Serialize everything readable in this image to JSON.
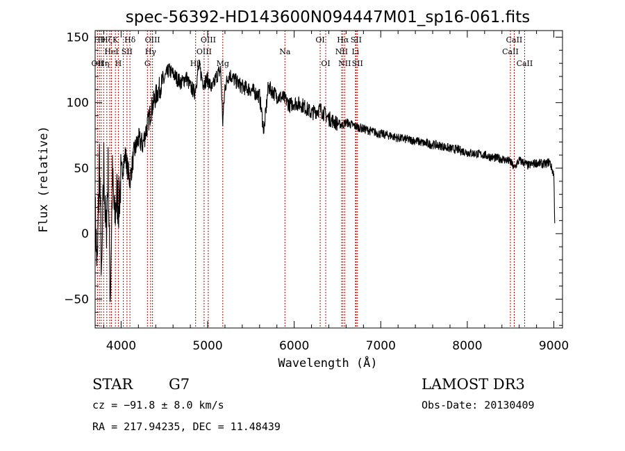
{
  "chart_data": {
    "type": "line",
    "title": "spec-56392-HD143600N094447M01_sp16-061.fits",
    "xlabel": "Wavelength (Å)",
    "ylabel": "Flux (relative)",
    "xlim": [
      3700,
      9100
    ],
    "ylim": [
      -72,
      155
    ],
    "xticks": [
      {
        "value": 4000,
        "label": "4000"
      },
      {
        "value": 5000,
        "label": "5000"
      },
      {
        "value": 6000,
        "label": "6000"
      },
      {
        "value": 7000,
        "label": "7000"
      },
      {
        "value": 8000,
        "label": "8000"
      },
      {
        "value": 9000,
        "label": "9000"
      }
    ],
    "yticks": [
      {
        "value": -50,
        "label": "−50"
      },
      {
        "value": 0,
        "label": "0"
      },
      {
        "value": 50,
        "label": "50"
      },
      {
        "value": 100,
        "label": "100"
      },
      {
        "value": 150,
        "label": "150"
      }
    ],
    "series": [
      {
        "name": "flux",
        "x": [
          3700,
          3725,
          3750,
          3775,
          3800,
          3825,
          3850,
          3875,
          3900,
          3925,
          3950,
          3975,
          4000,
          4050,
          4100,
          4150,
          4200,
          4250,
          4300,
          4350,
          4400,
          4450,
          4500,
          4550,
          4600,
          4650,
          4700,
          4750,
          4800,
          4850,
          4900,
          4950,
          5000,
          5050,
          5100,
          5150,
          5175,
          5200,
          5250,
          5300,
          5400,
          5500,
          5600,
          5650,
          5700,
          5800,
          5890,
          5950,
          6000,
          6100,
          6200,
          6300,
          6400,
          6500,
          6560,
          6600,
          6700,
          6800,
          6900,
          7000,
          7100,
          7200,
          7300,
          7400,
          7500,
          7600,
          7700,
          7800,
          7900,
          8000,
          8100,
          8200,
          8300,
          8400,
          8500,
          8540,
          8600,
          8660,
          8700,
          8800,
          8900,
          8950,
          9000,
          9010
        ],
        "y": [
          15,
          -28,
          60,
          -40,
          55,
          -5,
          48,
          -48,
          42,
          10,
          30,
          22,
          45,
          60,
          40,
          62,
          72,
          68,
          82,
          95,
          105,
          112,
          118,
          125,
          122,
          118,
          115,
          120,
          112,
          108,
          128,
          115,
          118,
          110,
          120,
          125,
          85,
          112,
          122,
          118,
          112,
          110,
          105,
          78,
          112,
          105,
          103,
          98,
          100,
          98,
          92,
          95,
          88,
          84,
          83,
          85,
          82,
          80,
          78,
          76,
          75,
          73,
          72,
          71,
          69,
          68,
          67,
          65,
          64,
          62,
          61,
          60,
          58,
          57,
          55,
          50,
          56,
          54,
          52,
          54,
          53,
          55,
          45,
          8
        ]
      }
    ],
    "lines": [
      {
        "x": 3727,
        "label": "OII",
        "row": 3
      },
      {
        "x": 3750,
        "label": "Hθ",
        "row": 1
      },
      {
        "x": 3770,
        "label": "",
        "row": 0
      },
      {
        "x": 3798,
        "label": "Hη",
        "row": 3
      },
      {
        "x": 3835,
        "label": "Hζ",
        "row": 1
      },
      {
        "x": 3869,
        "label": "",
        "row": 0
      },
      {
        "x": 3889,
        "label": "HeI",
        "row": 2
      },
      {
        "x": 3934,
        "label": "K",
        "row": 1
      },
      {
        "x": 3968,
        "label": "H",
        "row": 3
      },
      {
        "x": 4026,
        "label": "",
        "row": 0
      },
      {
        "x": 4068,
        "label": "SII",
        "row": 2
      },
      {
        "x": 4102,
        "label": "Hδ",
        "row": 1
      },
      {
        "x": 4304,
        "label": "G",
        "row": 3
      },
      {
        "x": 4341,
        "label": "Hγ",
        "row": 2
      },
      {
        "x": 4363,
        "label": "OIII",
        "row": 1
      },
      {
        "x": 4861,
        "label": "Hβ",
        "row": 3
      },
      {
        "x": 4959,
        "label": "OIII",
        "row": 2
      },
      {
        "x": 5007,
        "label": "OIII",
        "row": 1
      },
      {
        "x": 5175,
        "label": "Mg",
        "row": 3
      },
      {
        "x": 5893,
        "label": "Na",
        "row": 2
      },
      {
        "x": 6300,
        "label": "OI",
        "row": 1
      },
      {
        "x": 6364,
        "label": "OI",
        "row": 3
      },
      {
        "x": 6548,
        "label": "NII",
        "row": 2
      },
      {
        "x": 6563,
        "label": "Hα",
        "row": 1
      },
      {
        "x": 6583,
        "label": "NII",
        "row": 3
      },
      {
        "x": 6708,
        "label": "Li",
        "row": 2
      },
      {
        "x": 6716,
        "label": "SII",
        "row": 1
      },
      {
        "x": 6731,
        "label": "SII",
        "row": 3
      },
      {
        "x": 8498,
        "label": "CaII",
        "row": 2
      },
      {
        "x": 8542,
        "label": "CaII",
        "row": 1
      },
      {
        "x": 8662,
        "label": "CaII",
        "row": 3
      }
    ]
  },
  "info": {
    "class": "STAR",
    "subclass": "G7",
    "cz": "cz = −91.8 ± 8.0 km/s",
    "radec": "RA = 217.94235, DEC =  11.48439",
    "survey": "LAMOST DR3",
    "obsdate": "Obs-Date: 20130409"
  },
  "colors": {
    "axes": "#000000",
    "spectrum": "#000000",
    "lines": "#b00000"
  }
}
